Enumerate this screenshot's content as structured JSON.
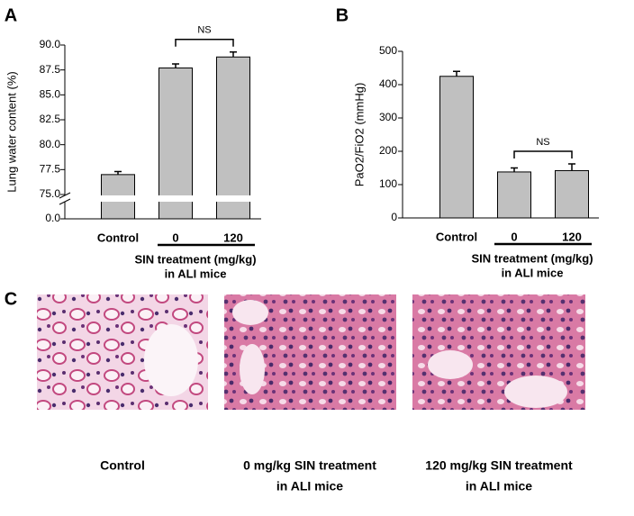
{
  "chart_data": [
    {
      "type": "bar",
      "panel": "A",
      "ylabel": "Lung water content (%)",
      "categories": [
        "Control",
        "0",
        "120"
      ],
      "values": [
        77.0,
        87.7,
        88.8
      ],
      "errors": [
        0.3,
        0.4,
        0.5
      ],
      "color": "#c0c0c0",
      "ylim": [
        75,
        90
      ],
      "axis_break": [
        0,
        75
      ],
      "yticks": [
        {
          "value": 0,
          "label": "0.0"
        },
        {
          "value": 75,
          "label": "75.0"
        },
        {
          "value": 77.5,
          "label": "77.5"
        },
        {
          "value": 80,
          "label": "80.0"
        },
        {
          "value": 82.5,
          "label": "82.5"
        },
        {
          "value": 85,
          "label": "85.0"
        },
        {
          "value": 87.5,
          "label": "87.5"
        },
        {
          "value": 90,
          "label": "90.0"
        }
      ],
      "group_label": [
        "SIN treatment (mg/kg)",
        "in ALI mice"
      ],
      "annotation": "NS"
    },
    {
      "type": "bar",
      "panel": "B",
      "ylabel": "PaO2/FiO2 (mmHg)",
      "categories": [
        "Control",
        "0",
        "120"
      ],
      "values": [
        425,
        138,
        142
      ],
      "errors": [
        15,
        12,
        20
      ],
      "color": "#c0c0c0",
      "ylim": [
        0,
        500
      ],
      "yticks": [
        0,
        100,
        200,
        300,
        400,
        500
      ],
      "group_label": [
        "SIN treatment (mg/kg)",
        "in ALI mice"
      ],
      "annotation": "NS"
    }
  ],
  "panel_c": {
    "letter": "C",
    "captions": [
      [
        "Control"
      ],
      [
        "0 mg/kg SIN treatment",
        "in ALI mice"
      ],
      [
        "120 mg/kg SIN treatment",
        "in ALI mice"
      ]
    ]
  }
}
